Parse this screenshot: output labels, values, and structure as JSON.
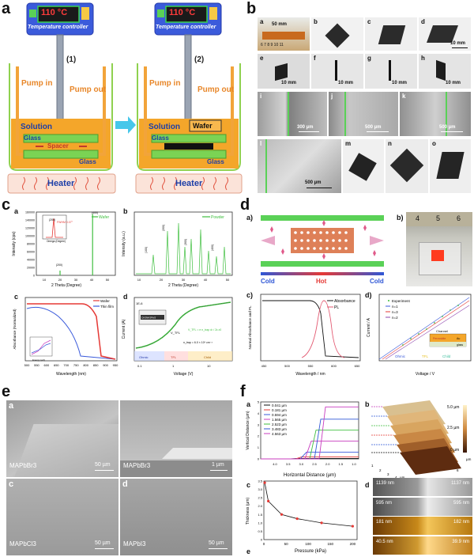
{
  "panel_a": {
    "label": "a",
    "controller_temp": "110 °C",
    "controller_label": "Temperature controller",
    "step1": "(1)",
    "step2": "(2)",
    "pump_in": "Pump in",
    "pump_out": "Pump out",
    "solution": "Solution",
    "glass": "Glass",
    "spacer": "Spacer",
    "wafer": "Wafer",
    "heater": "Heater"
  },
  "panel_b": {
    "label": "b",
    "subs": [
      "a",
      "b",
      "c",
      "d",
      "e",
      "f",
      "g",
      "h",
      "i",
      "j",
      "k",
      "l",
      "m",
      "n",
      "o"
    ],
    "scales": {
      "a": "50 mm",
      "d": "10 mm",
      "e": "10 mm",
      "f": "10 mm",
      "g": "10 mm",
      "h": "10 mm",
      "i": "300 µm",
      "j": "500 µm",
      "k": "500 µm",
      "l": "500 µm"
    },
    "ruler": "6 7 8 9 10 11"
  },
  "panel_c": {
    "label": "c",
    "a": {
      "label": "a",
      "ylabel": "Intensity (cps)",
      "xlabel": "2 Theta (Degree)",
      "legend": "Wafer",
      "yticks": [
        "0",
        "20000",
        "40000",
        "60000",
        "80000",
        "100000",
        "120000",
        "140000",
        "160000"
      ],
      "xticks": [
        "10",
        "20",
        "30",
        "40",
        "50"
      ],
      "peaks": [
        "(200)",
        "(400)"
      ],
      "inset_legend": "FWHM 0.07°",
      "inset_xlabel": "Omega (Degree)",
      "inset_peak": "(200)"
    },
    "b": {
      "label": "b",
      "ylabel": "Intensity (a.u.)",
      "xlabel": "2 Theta (Degree)",
      "legend": "Powder",
      "xticks": [
        "10",
        "20",
        "30",
        "40",
        "50"
      ],
      "peaks": [
        "(100)",
        "(200)",
        "(300)",
        "(400)"
      ]
    },
    "c": {
      "label": "c",
      "ylabel": "Absorbance (Normalized)",
      "xlabel": "Wavelength (nm)",
      "legend": [
        "Wafer",
        "Thin film"
      ],
      "xticks": [
        "500",
        "550",
        "600",
        "650",
        "700",
        "750",
        "800",
        "850",
        "900",
        "950"
      ],
      "inset_xlabel": "Energy (eV)"
    },
    "d": {
      "label": "d",
      "ylabel": "Current (A)",
      "xlabel": "Voltage (V)",
      "ytick": "1E-6",
      "xticks": [
        "0.1",
        "1",
        "10"
      ],
      "device": "CH3NH3PbI3",
      "vtfl": "V_TFL",
      "eq1": "V_TFL = e n_trap d² / 2ε ε0",
      "eq2": "n_trap = 6.0 × 10⁹ cm⁻³",
      "regions": [
        "Ohmic",
        "TFL",
        "Child"
      ]
    }
  },
  "panel_d": {
    "label": "d",
    "a_label": "a)",
    "b_label": "b)",
    "c_label": "c)",
    "d_label": "d)",
    "cold_left": "Cold",
    "hot": "Hot",
    "cold_right": "Cold",
    "ruler": [
      "4",
      "5",
      "6"
    ],
    "c": {
      "ylabel": "Normal Absorbance and PL",
      "xlabel": "Wavelength / nm",
      "xticks": [
        "450",
        "500",
        "550",
        "600",
        "650"
      ],
      "legend": [
        "Absorbance",
        "PL"
      ]
    },
    "d": {
      "ylabel": "Current / A",
      "xlabel": "Voltage / V",
      "legend": [
        "Experiment",
        "n=1",
        "n=3",
        "n=2"
      ],
      "channel": "Channel",
      "perovskite": "Perovskite",
      "au": "Au",
      "glass": "glass",
      "regions": [
        "Ohmic",
        "TFL",
        "Child"
      ]
    }
  },
  "panel_e": {
    "label": "e",
    "tiles": [
      {
        "sub": "a",
        "material": "MAPbBr3",
        "scale": "50 µm"
      },
      {
        "sub": "b",
        "material": "MAPbBr3",
        "scale": "1 µm"
      },
      {
        "sub": "c",
        "material": "MAPbCl3",
        "scale": "50 µm"
      },
      {
        "sub": "d",
        "material": "MAPbI3",
        "scale": "50 µm"
      }
    ]
  },
  "panel_f": {
    "label": "f",
    "a": {
      "label": "a",
      "ylabel": "Vertical Distance (µm)",
      "xlabel": "Horizontal Distance (µm)",
      "yticks": [
        "0",
        "1",
        "2",
        "3",
        "4",
        "5"
      ],
      "xticks": [
        "4.0",
        "3.5",
        "3.0",
        "2.5",
        "2.0",
        "1.5",
        "1.0"
      ],
      "legend": [
        "0.041 µm",
        "0.181 µm",
        "0.594 µm",
        "1.565 µm",
        "2.523 µm",
        "3.483 µm",
        "4.563 µm"
      ]
    },
    "b": {
      "label": "b",
      "z1": "5.0 µm",
      "z2": "2.5 µm",
      "z3": "0 µm",
      "ax_y": [
        "0",
        "1",
        "2",
        "3",
        "4"
      ],
      "ax_x": [
        "1",
        "2",
        "3",
        "4",
        "5",
        "6"
      ],
      "ax_unit": "µm"
    },
    "c": {
      "label": "c",
      "ylabel": "Thickness (µm)",
      "xlabel": "Pressure (kPa)",
      "yticks": [
        "0",
        "0.5",
        "1.0",
        "1.5",
        "2.0",
        "2.5",
        "3.0",
        "3.5"
      ],
      "xticks": [
        "0",
        "50",
        "100",
        "150",
        "200"
      ]
    },
    "d": {
      "label": "d",
      "rows": [
        {
          "left": "1139 nm",
          "right": "1137 nm"
        },
        {
          "left": "595 nm",
          "right": "595 nm"
        },
        {
          "left": "181 nm",
          "right": "182 nm"
        },
        {
          "left": "40.5 nm",
          "right": "39.9 nm"
        }
      ]
    },
    "e": "e"
  },
  "chart_data": [
    {
      "type": "line",
      "panel": "c-a",
      "xlabel": "2 Theta (Degree)",
      "ylabel": "Intensity (cps)",
      "xlim": [
        5,
        55
      ],
      "ylim": [
        0,
        160000
      ],
      "series": [
        {
          "name": "Wafer",
          "x": [
            20,
            40.6
          ],
          "y": [
            12000,
            155000
          ]
        }
      ]
    },
    {
      "type": "line",
      "panel": "f-c",
      "xlabel": "Pressure (kPa)",
      "ylabel": "Thickness (µm)",
      "xlim": [
        0,
        210
      ],
      "ylim": [
        0,
        3.5
      ],
      "series": [
        {
          "x": [
            2,
            10,
            40,
            75,
            130,
            200
          ],
          "y": [
            3.4,
            2.3,
            1.5,
            1.25,
            1.0,
            0.8
          ]
        }
      ]
    },
    {
      "type": "line",
      "panel": "d-c",
      "xlabel": "Wavelength / nm",
      "ylabel": "Normal Absorbance and PL",
      "xlim": [
        450,
        650
      ],
      "series": [
        {
          "name": "Absorbance",
          "x": [
            460,
            500,
            530,
            545,
            555,
            570,
            600,
            650
          ],
          "y": [
            0.9,
            0.92,
            0.92,
            0.85,
            0.3,
            0.05,
            0.02,
            0.01
          ]
        },
        {
          "name": "PL",
          "x": [
            520,
            535,
            545,
            550,
            560,
            575
          ],
          "y": [
            0.02,
            0.3,
            0.95,
            0.9,
            0.35,
            0.02
          ]
        }
      ]
    }
  ]
}
